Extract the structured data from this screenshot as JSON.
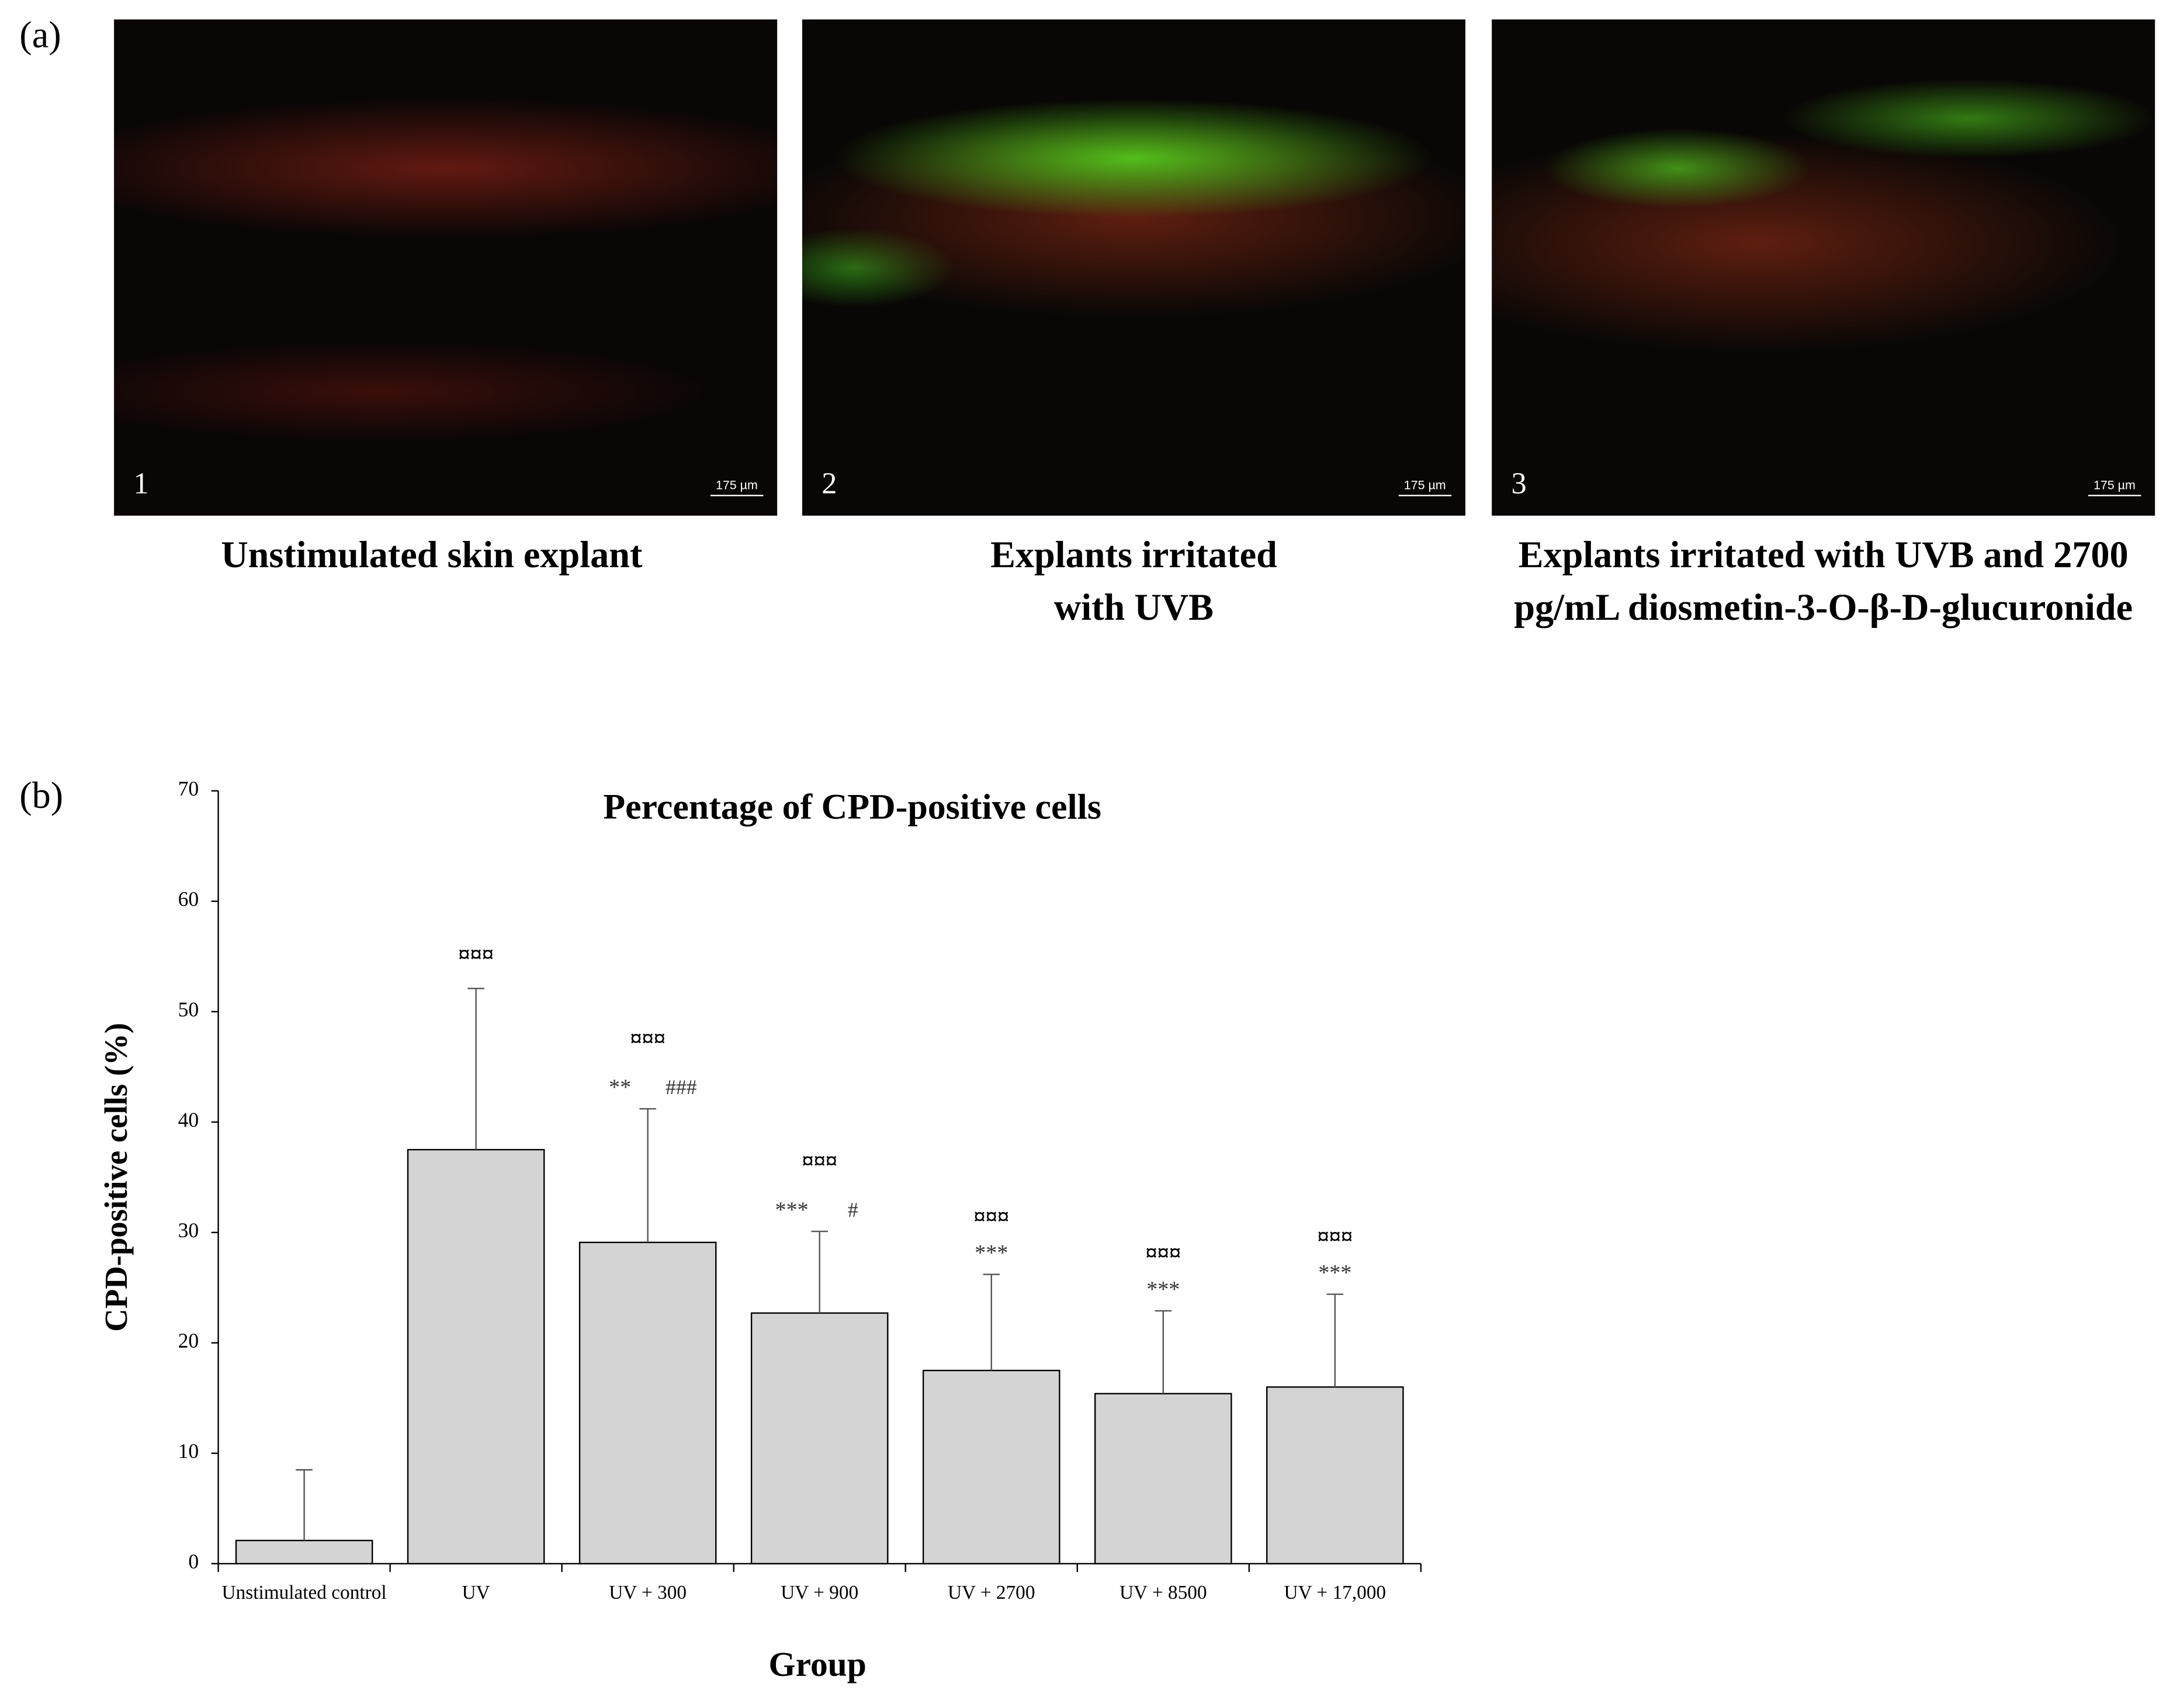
{
  "panel_a": {
    "label": "(a)",
    "images": [
      {
        "number": "1",
        "scale_bar": "175 µm",
        "caption": "Unstimulated skin explant"
      },
      {
        "number": "2",
        "scale_bar": "175 µm",
        "caption": "Explants irritated with UVB"
      },
      {
        "number": "3",
        "scale_bar": "175 µm",
        "caption": "Explants irritated with UVB and 2700 pg/mL diosmetin-3-O-β-D-glucuronide"
      }
    ]
  },
  "chart_data": {
    "type": "bar",
    "panel_label": "(b)",
    "title": "Percentage of CPD-positive cells",
    "x_label": "Group",
    "y_label": "CPD-positive cells (%)",
    "categories": [
      "Unstimulated control",
      "UV",
      "UV + 300",
      "UV + 900",
      "UV + 2700",
      "UV + 8500",
      "UV + 17,000"
    ],
    "values": [
      2.1,
      37.5,
      29.1,
      22.7,
      17.5,
      15.4,
      16.0
    ],
    "errors": [
      6.4,
      14.6,
      12.1,
      7.4,
      8.7,
      7.5,
      8.4
    ],
    "significance": [
      null,
      {
        "above": "¤¤¤"
      },
      {
        "above": "¤¤¤",
        "stars": "**",
        "hashes": "###"
      },
      {
        "above": "¤¤¤",
        "stars": "***",
        "hashes": "#"
      },
      {
        "above": "¤¤¤",
        "stars": "***"
      },
      {
        "above": "¤¤¤",
        "stars": "***"
      },
      {
        "above": "¤¤¤",
        "stars": "***"
      }
    ],
    "color": "#d4d4d4",
    "ylim": [
      0,
      70
    ],
    "yticks": [
      0,
      10,
      20,
      30,
      40,
      50,
      60,
      70
    ],
    "grid": false
  }
}
